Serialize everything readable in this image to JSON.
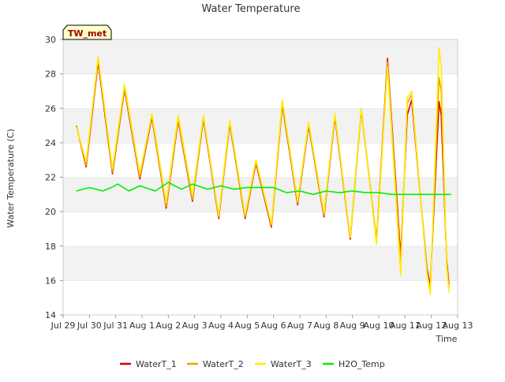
{
  "chart_data": {
    "type": "line",
    "title": "Water Temperature",
    "xlabel": "Time",
    "ylabel": "Water Temperature (C)",
    "ylim": [
      14,
      30
    ],
    "yticks": [
      14,
      16,
      18,
      20,
      22,
      24,
      26,
      28,
      30
    ],
    "xlim": [
      "2021-07-29",
      "2021-08-13"
    ],
    "xticks": [
      "Jul 29",
      "Jul 30",
      "Jul 31",
      "Aug 1",
      "Aug 2",
      "Aug 3",
      "Aug 4",
      "Aug 5",
      "Aug 6",
      "Aug 7",
      "Aug 8",
      "Aug 9",
      "Aug 10",
      "Aug 11",
      "Aug 12",
      "Aug 13"
    ],
    "grid": "horizontal bands",
    "legend_placement": "bottom",
    "station_label": "TW_met",
    "series": [
      {
        "name": "WaterT_1",
        "color": "#dd0000",
        "x": [
          "2021-07-29T12:00",
          "2021-07-29T21:00",
          "2021-07-30T08:00",
          "2021-07-30T21:00",
          "2021-07-31T08:00",
          "2021-07-31T22:00",
          "2021-08-01T09:00",
          "2021-08-01T22:00",
          "2021-08-02T09:00",
          "2021-08-02T22:00",
          "2021-08-03T08:00",
          "2021-08-03T22:00",
          "2021-08-04T08:00",
          "2021-08-04T22:00",
          "2021-08-05T08:00",
          "2021-08-05T22:00",
          "2021-08-06T08:00",
          "2021-08-06T22:00",
          "2021-08-07T08:00",
          "2021-08-07T22:00",
          "2021-08-08T08:00",
          "2021-08-08T22:00",
          "2021-08-09T08:00",
          "2021-08-09T22:00",
          "2021-08-10T08:00",
          "2021-08-10T20:00",
          "2021-08-11T02:00",
          "2021-08-11T06:00",
          "2021-08-11T20:00",
          "2021-08-11T23:00",
          "2021-08-12T07:00",
          "2021-08-12T09:00",
          "2021-08-12T14:00",
          "2021-08-12T16:00"
        ],
        "values": [
          25.0,
          22.6,
          28.7,
          22.2,
          27.1,
          21.9,
          25.5,
          20.2,
          25.3,
          20.6,
          25.4,
          19.6,
          25.1,
          19.6,
          22.8,
          19.1,
          26.2,
          20.4,
          25.0,
          19.7,
          25.5,
          18.4,
          25.9,
          18.3,
          28.9,
          17.4,
          25.6,
          26.5,
          16.7,
          15.7,
          26.4,
          25.6,
          17.2,
          15.8
        ]
      },
      {
        "name": "WaterT_2",
        "color": "#f0a000",
        "x": [
          "2021-07-29T12:00",
          "2021-07-29T21:00",
          "2021-07-30T08:00",
          "2021-07-30T21:00",
          "2021-07-31T08:00",
          "2021-07-31T22:00",
          "2021-08-01T09:00",
          "2021-08-01T22:00",
          "2021-08-02T09:00",
          "2021-08-02T22:00",
          "2021-08-03T08:00",
          "2021-08-03T22:00",
          "2021-08-04T08:00",
          "2021-08-04T22:00",
          "2021-08-05T08:00",
          "2021-08-05T22:00",
          "2021-08-06T08:00",
          "2021-08-06T22:00",
          "2021-08-07T08:00",
          "2021-08-07T22:00",
          "2021-08-08T08:00",
          "2021-08-08T22:00",
          "2021-08-09T08:00",
          "2021-08-09T22:00",
          "2021-08-10T08:00",
          "2021-08-10T20:00",
          "2021-08-11T02:00",
          "2021-08-11T06:00",
          "2021-08-11T20:00",
          "2021-08-11T23:00",
          "2021-08-12T07:00",
          "2021-08-12T09:00",
          "2021-08-12T14:00",
          "2021-08-12T16:00"
        ],
        "values": [
          25.0,
          22.7,
          28.9,
          22.3,
          27.2,
          22.0,
          25.6,
          20.3,
          25.4,
          20.7,
          25.5,
          19.7,
          25.2,
          19.7,
          22.9,
          19.2,
          26.3,
          20.5,
          25.1,
          19.8,
          25.6,
          18.5,
          26.0,
          18.3,
          28.7,
          17.0,
          26.3,
          26.8,
          16.5,
          15.5,
          27.8,
          27.0,
          17.0,
          15.6
        ]
      },
      {
        "name": "WaterT_3",
        "color": "#ffee00",
        "x": [
          "2021-07-29T12:00",
          "2021-07-29T21:00",
          "2021-07-30T08:00",
          "2021-07-30T21:00",
          "2021-07-31T08:00",
          "2021-07-31T22:00",
          "2021-08-01T09:00",
          "2021-08-01T22:00",
          "2021-08-02T09:00",
          "2021-08-02T22:00",
          "2021-08-03T08:00",
          "2021-08-03T22:00",
          "2021-08-04T08:00",
          "2021-08-04T22:00",
          "2021-08-05T08:00",
          "2021-08-05T22:00",
          "2021-08-06T08:00",
          "2021-08-06T22:00",
          "2021-08-07T08:00",
          "2021-08-07T22:00",
          "2021-08-08T08:00",
          "2021-08-08T22:00",
          "2021-08-09T08:00",
          "2021-08-09T22:00",
          "2021-08-10T08:00",
          "2021-08-10T20:00",
          "2021-08-11T02:00",
          "2021-08-11T06:00",
          "2021-08-11T20:00",
          "2021-08-11T23:00",
          "2021-08-12T07:00",
          "2021-08-12T09:00",
          "2021-08-12T14:00",
          "2021-08-12T16:00"
        ],
        "values": [
          24.9,
          22.9,
          29.0,
          22.5,
          27.4,
          22.2,
          25.7,
          20.5,
          25.6,
          20.9,
          25.6,
          19.8,
          25.3,
          19.8,
          23.0,
          19.3,
          26.5,
          20.6,
          25.2,
          19.9,
          25.7,
          18.5,
          26.0,
          18.1,
          28.4,
          16.3,
          26.6,
          27.0,
          16.4,
          15.2,
          29.5,
          28.5,
          16.8,
          15.3
        ]
      },
      {
        "name": "H2O_Temp",
        "color": "#00ee00",
        "x": [
          "2021-07-29T12:00",
          "2021-07-30T00:00",
          "2021-07-30T12:00",
          "2021-07-30T20:00",
          "2021-07-31T02:00",
          "2021-07-31T12:00",
          "2021-07-31T22:00",
          "2021-08-01T12:00",
          "2021-08-02T00:00",
          "2021-08-02T12:00",
          "2021-08-02T22:00",
          "2021-08-03T12:00",
          "2021-08-04T00:00",
          "2021-08-04T12:00",
          "2021-08-05T00:00",
          "2021-08-05T12:00",
          "2021-08-06T00:00",
          "2021-08-06T12:00",
          "2021-08-07T00:00",
          "2021-08-07T12:00",
          "2021-08-08T00:00",
          "2021-08-08T12:00",
          "2021-08-09T00:00",
          "2021-08-09T12:00",
          "2021-08-10T00:00",
          "2021-08-10T12:00",
          "2021-08-11T00:00",
          "2021-08-11T12:00",
          "2021-08-12T00:00",
          "2021-08-12T12:00",
          "2021-08-12T18:00"
        ],
        "values": [
          21.2,
          21.4,
          21.2,
          21.4,
          21.6,
          21.2,
          21.5,
          21.2,
          21.7,
          21.3,
          21.6,
          21.3,
          21.5,
          21.3,
          21.4,
          21.4,
          21.4,
          21.1,
          21.2,
          21.0,
          21.2,
          21.1,
          21.2,
          21.1,
          21.1,
          21.0,
          21.0,
          21.0,
          21.0,
          21.0,
          21.0
        ]
      }
    ]
  }
}
